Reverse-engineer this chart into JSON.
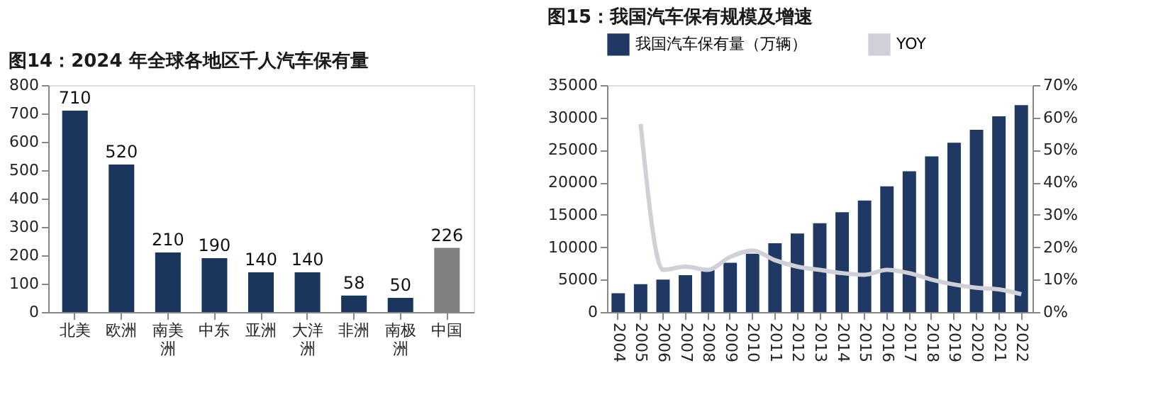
{
  "chart_data": [
    {
      "type": "bar",
      "title": "图14：2024 年全球各地区千人汽车保有量",
      "categories": [
        "北美",
        "欧洲",
        "南美洲",
        "中东",
        "亚洲",
        "大洋洲",
        "非洲",
        "南极洲",
        "中国"
      ],
      "values": [
        710,
        520,
        210,
        190,
        140,
        140,
        58,
        50,
        226
      ],
      "colors": [
        "#1b365d",
        "#1b365d",
        "#1b365d",
        "#1b365d",
        "#1b365d",
        "#1b365d",
        "#1b365d",
        "#1b365d",
        "#808080"
      ],
      "ylim": [
        0,
        800
      ],
      "yticks": [
        0,
        100,
        200,
        300,
        400,
        500,
        600,
        700,
        800
      ],
      "data_labels": true,
      "grid": false
    },
    {
      "type": "bar",
      "title": "图15：我国汽车保有规模及增速",
      "categories": [
        "2004",
        "2005",
        "2006",
        "2007",
        "2008",
        "2009",
        "2010",
        "2011",
        "2012",
        "2013",
        "2014",
        "2015",
        "2016",
        "2017",
        "2018",
        "2019",
        "2020",
        "2021",
        "2022"
      ],
      "series": [
        {
          "name": "我国汽车保有量（万辆）",
          "color": "#1f3864",
          "type": "bar",
          "values": [
            2900,
            4300,
            5000,
            5700,
            6500,
            7600,
            9000,
            10600,
            12100,
            13700,
            15400,
            17200,
            19400,
            21700,
            24000,
            26100,
            28100,
            30200,
            31900
          ]
        },
        {
          "name": "YOY",
          "color": "#d0d0d8",
          "type": "line",
          "axis": "y2",
          "values": [
            null,
            58,
            13,
            14,
            13,
            17,
            19,
            16,
            14,
            13,
            12,
            11.5,
            13,
            12,
            10,
            8.5,
            7.5,
            7,
            5.5
          ]
        }
      ],
      "ylim": [
        0,
        35000
      ],
      "yticks": [
        0,
        5000,
        10000,
        15000,
        20000,
        25000,
        30000,
        35000
      ],
      "y2lim": [
        0,
        70
      ],
      "y2ticks": [
        {
          "value": 0,
          "label": "0%"
        },
        {
          "value": 10,
          "label": "10%"
        },
        {
          "value": 20,
          "label": "20%"
        },
        {
          "value": 30,
          "label": "30%"
        },
        {
          "value": 40,
          "label": "40%"
        },
        {
          "value": 50,
          "label": "50%"
        },
        {
          "value": 60,
          "label": "60%"
        },
        {
          "value": 70,
          "label": "70%"
        }
      ],
      "grid": false,
      "legend": "top"
    }
  ]
}
